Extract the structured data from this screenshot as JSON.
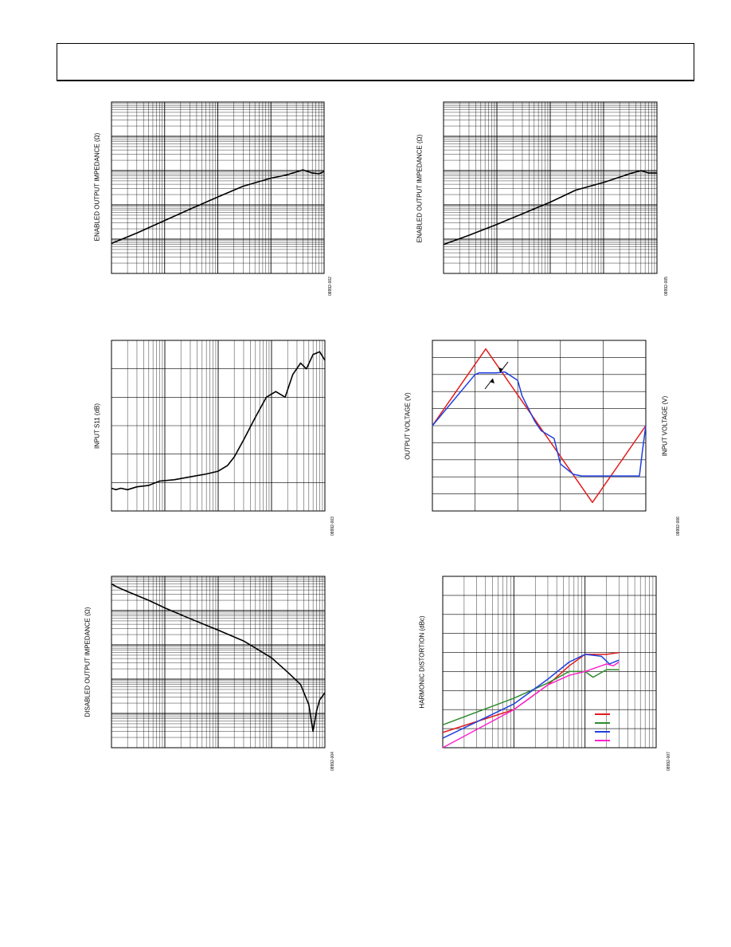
{
  "page": {
    "header": ""
  },
  "colors": {
    "frame": "#000000",
    "grid": "#000000",
    "red": "#e31b1b",
    "blue": "#1f3fe0",
    "green": "#2e8b2e",
    "magenta": "#ff22cc"
  },
  "panels": [
    {
      "id": "p1",
      "ylabel": "ENABLED OUTPUT IMPEDANCE (Ω)",
      "fig_id": "08992-002",
      "chart_data": {
        "type": "line",
        "xscale": "log",
        "yscale": "log",
        "grid": true,
        "xlim": [
          0.1,
          1000
        ],
        "ylim": [
          0.001,
          100
        ],
        "series": [
          {
            "color": "#000000",
            "x": [
              0.1,
              0.3,
              1,
              3,
              10,
              30,
              100,
              200,
              400,
              600,
              800,
              1000
            ],
            "y": [
              0.0075,
              0.015,
              0.035,
              0.075,
              0.17,
              0.35,
              0.6,
              0.75,
              1.05,
              0.85,
              0.8,
              0.95
            ]
          }
        ]
      }
    },
    {
      "id": "p2",
      "ylabel": "ENABLED OUTPUT IMPEDANCE (Ω)",
      "fig_id": "08992-005",
      "chart_data": {
        "type": "line",
        "xscale": "log",
        "yscale": "log",
        "grid": true,
        "xlim": [
          0.1,
          1000
        ],
        "ylim": [
          0.001,
          100
        ],
        "series": [
          {
            "color": "#000000",
            "x": [
              0.1,
              0.3,
              1,
              3,
              10,
              30,
              100,
              300,
              500,
              700,
              1000
            ],
            "y": [
              0.007,
              0.013,
              0.027,
              0.055,
              0.12,
              0.27,
              0.45,
              0.8,
              1.0,
              0.85,
              0.85
            ]
          }
        ]
      }
    },
    {
      "id": "p3",
      "ylabel": "INPUT S11 (dB)",
      "fig_id": "08992-003",
      "chart_data": {
        "type": "line",
        "xscale": "log",
        "yscale": "linear",
        "grid": true,
        "xlim": [
          1,
          10000
        ],
        "ylim": [
          -60,
          0
        ],
        "series": [
          {
            "color": "#000000",
            "x": [
              1,
              1.2,
              1.5,
              2,
              3,
              5,
              8,
              15,
              30,
              60,
              100,
              150,
              200,
              300,
              500,
              800,
              1200,
              1800,
              2500,
              3500,
              4500,
              6000,
              8000,
              10000
            ],
            "y": [
              -52,
              -52.5,
              -52,
              -52.5,
              -51.5,
              -51,
              -49.5,
              -49,
              -48,
              -47,
              -46,
              -44,
              -41,
              -35,
              -27,
              -20,
              -18,
              -20,
              -12,
              -8,
              -10,
              -5,
              -4,
              -7
            ]
          }
        ]
      }
    },
    {
      "id": "p4",
      "ylabel": "OUTPUT VOLTAGE (V)",
      "ylabel_right": "INPUT VOLTAGE (V)",
      "fig_id": "08992-006",
      "chart_data": {
        "type": "line",
        "grid": true,
        "xlim": [
          0,
          5
        ],
        "ylim": [
          -10,
          10
        ],
        "series": [
          {
            "color": "#e31b1b",
            "x": [
              0,
              1.25,
              3.75,
              5
            ],
            "y": [
              0,
              9,
              -9,
              0
            ]
          },
          {
            "color": "#1f3fe0",
            "x": [
              0,
              1.0,
              1.1,
              1.5,
              1.7,
              2.0,
              2.1,
              2.4,
              2.55,
              2.85,
              3.0,
              3.3,
              3.5,
              4.0,
              4.5,
              4.85,
              4.92,
              5.0
            ],
            "y": [
              0,
              6,
              6.2,
              6.2,
              6.3,
              5.3,
              3.5,
              0.5,
              -0.6,
              -1.5,
              -4.5,
              -5.7,
              -5.9,
              -5.9,
              -5.9,
              -5.9,
              -3,
              0
            ]
          }
        ]
      }
    },
    {
      "id": "p5",
      "ylabel": "DISABLED OUTPUT IMPEDANCE (Ω)",
      "fig_id": "08992-004",
      "chart_data": {
        "type": "line",
        "xscale": "log",
        "yscale": "log",
        "grid": true,
        "xlim": [
          0.1,
          1000
        ],
        "ylim": [
          1,
          100000
        ],
        "series": [
          {
            "color": "#000000",
            "x": [
              0.1,
              0.13,
              0.2,
              0.5,
              1,
              3,
              10,
              30,
              100,
              200,
              350,
              500,
              600,
              700,
              800,
              1000
            ],
            "y": [
              60000,
              48000,
              36000,
              20000,
              12000,
              5800,
              2700,
              1300,
              420,
              160,
              70,
              18,
              3,
              12,
              25,
              40
            ]
          }
        ]
      }
    },
    {
      "id": "p6",
      "ylabel": "HARMONIC DISTORTION (dBc)",
      "fig_id": "08992-007",
      "chart_data": {
        "type": "line",
        "xscale": "log",
        "grid": true,
        "xlim": [
          1,
          1000
        ],
        "ylim": [
          -100,
          -10
        ],
        "series": [
          {
            "color": "#e31b1b",
            "x": [
              1,
              10,
              30,
              60,
              100,
              200,
              300
            ],
            "y": [
              -92,
              -80,
              -67,
              -57,
              -51,
              -51,
              -50
            ]
          },
          {
            "color": "#2e8b2e",
            "x": [
              1,
              10,
              30,
              60,
              100,
              130,
              200,
              300
            ],
            "y": [
              -88,
              -74,
              -66,
              -60,
              -60,
              -63,
              -59,
              -59
            ]
          },
          {
            "color": "#1f3fe0",
            "x": [
              1,
              10,
              30,
              60,
              100,
              170,
              220,
              300
            ],
            "y": [
              -95,
              -77,
              -64,
              -55,
              -51,
              -52,
              -56,
              -54
            ]
          },
          {
            "color": "#ff22cc",
            "x": [
              1,
              10,
              30,
              60,
              100,
              200,
              250,
              300
            ],
            "y": [
              -100,
              -80,
              -67,
              -62,
              -60,
              -56,
              -57,
              -55
            ]
          }
        ]
      }
    }
  ]
}
